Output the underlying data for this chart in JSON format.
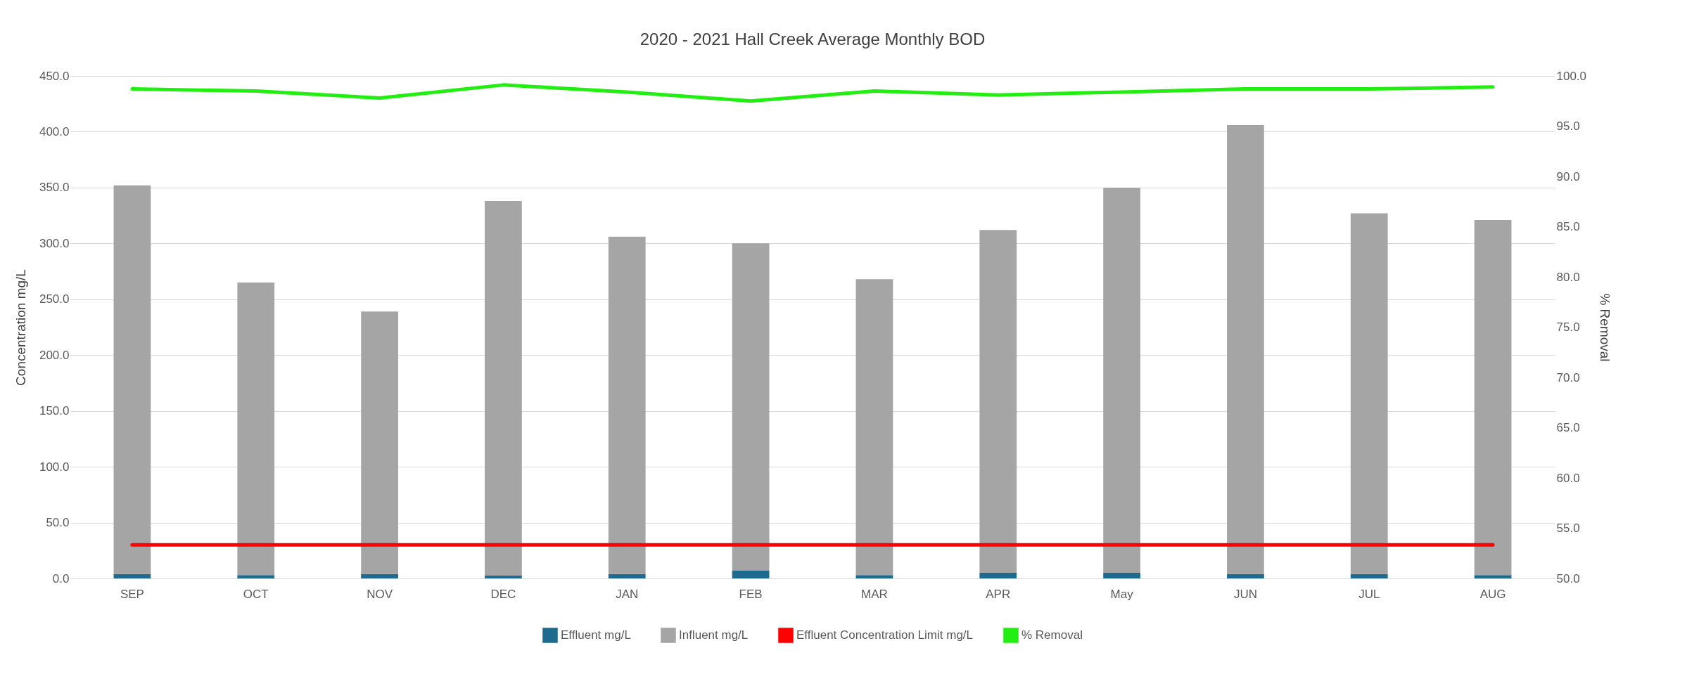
{
  "chart_data": {
    "type": "bar",
    "title": "2020 - 2021  Hall Creek Average Monthly BOD",
    "ylabel": "Concentration mg/L",
    "y2label": "% Removal",
    "categories": [
      "SEP",
      "OCT",
      "NOV",
      "DEC",
      "JAN",
      "FEB",
      "MAR",
      "APR",
      "May",
      "JUN",
      "JUL",
      "AUG"
    ],
    "series": [
      {
        "name": "Effluent mg/L",
        "color": "#1f6a8f",
        "values": [
          4,
          3,
          4,
          2.5,
          4,
          7,
          3,
          5,
          5,
          4,
          4,
          3
        ]
      },
      {
        "name": "Influent mg/L",
        "color": "#a5a5a5",
        "values": [
          348,
          262,
          235,
          335.5,
          302,
          293,
          265,
          307,
          345,
          402,
          323,
          318
        ]
      },
      {
        "name": "Effluent Concentration Limit mg/L",
        "type": "line",
        "color": "#ff0000",
        "values": [
          30,
          30,
          30,
          30,
          30,
          30,
          30,
          30,
          30,
          30,
          30,
          30
        ]
      },
      {
        "name": "% Removal",
        "type": "line",
        "axis": "y2",
        "color": "#22ee11",
        "values": [
          98.7,
          98.5,
          97.8,
          99.1,
          98.4,
          97.5,
          98.5,
          98.1,
          98.4,
          98.7,
          98.7,
          98.9
        ]
      }
    ],
    "ylim": [
      0,
      450
    ],
    "yticks": [
      {
        "value": 0,
        "label": "0.0"
      },
      {
        "value": 50,
        "label": "50.0"
      },
      {
        "value": 100,
        "label": "100.0"
      },
      {
        "value": 150,
        "label": "150.0"
      },
      {
        "value": 200,
        "label": "200.0"
      },
      {
        "value": 250,
        "label": "250.0"
      },
      {
        "value": 300,
        "label": "300.0"
      },
      {
        "value": 350,
        "label": "350.0"
      },
      {
        "value": 400,
        "label": "400.0"
      },
      {
        "value": 450,
        "label": "450.0"
      }
    ],
    "y2lim": [
      50,
      100
    ],
    "y2ticks": [
      {
        "value": 50,
        "label": "50.0"
      },
      {
        "value": 55,
        "label": "55.0"
      },
      {
        "value": 60,
        "label": "60.0"
      },
      {
        "value": 65,
        "label": "65.0"
      },
      {
        "value": 70,
        "label": "70.0"
      },
      {
        "value": 75,
        "label": "75.0"
      },
      {
        "value": 80,
        "label": "80.0"
      },
      {
        "value": 85,
        "label": "85.0"
      },
      {
        "value": 90,
        "label": "90.0"
      },
      {
        "value": 95,
        "label": "95.0"
      },
      {
        "value": 100,
        "label": "100.0"
      }
    ],
    "stacked": true,
    "grid": "y",
    "legend": "bottom"
  }
}
